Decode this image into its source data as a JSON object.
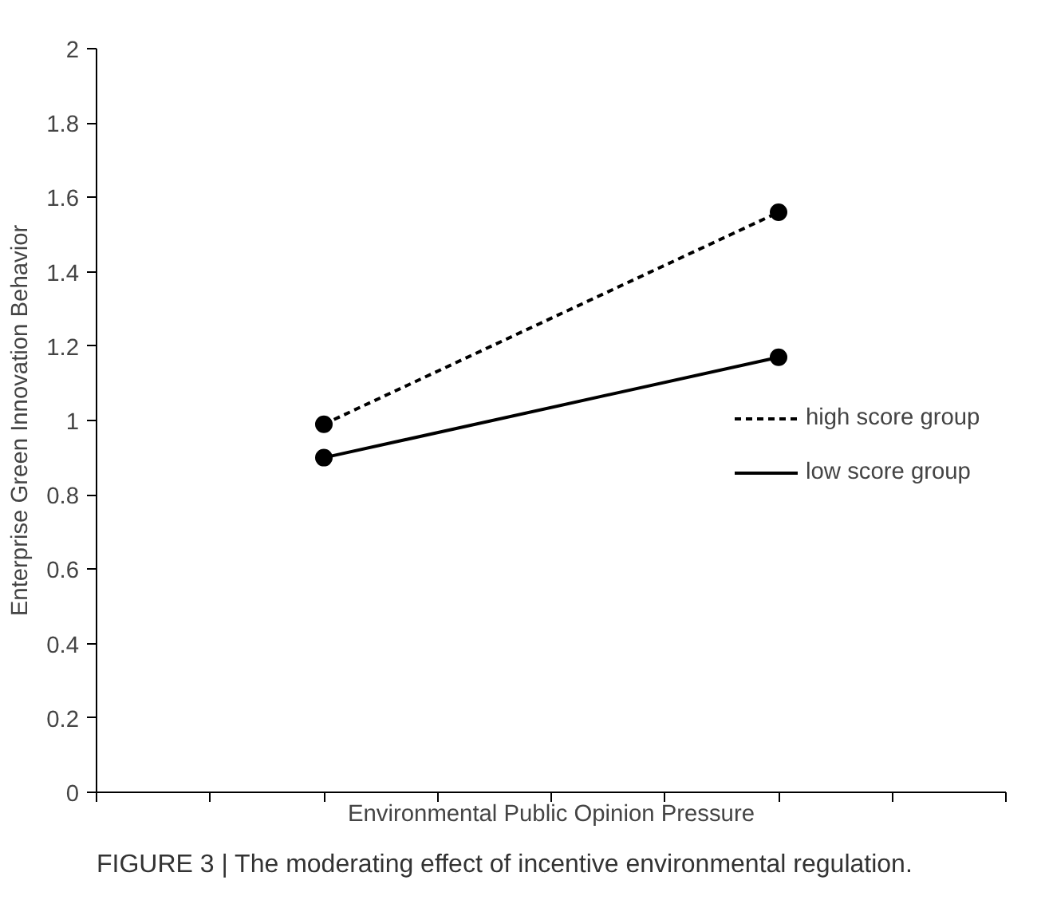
{
  "chart_data": {
    "type": "line",
    "xlabel": "Environmental Public Opinion Pressure",
    "ylabel": "Enterprise Green Innovation Behavior",
    "categories": [
      null,
      null
    ],
    "series": [
      {
        "name": "high score group",
        "color": "#000000",
        "values": [
          0.99,
          1.56
        ],
        "line_style": "dashed"
      },
      {
        "name": "low score group",
        "color": "#000000",
        "values": [
          0.9,
          1.17
        ],
        "line_style": "solid"
      }
    ],
    "ylim": [
      0,
      2
    ],
    "yticks": [
      0,
      0.2,
      0.4,
      0.6,
      0.8,
      1,
      1.2,
      1.4,
      1.6,
      1.8,
      2
    ],
    "grid": false,
    "legend": "right",
    "marker": "circle",
    "annotations": [
      "FIGURE 3 | The moderating effect of incentive environmental regulation."
    ]
  }
}
